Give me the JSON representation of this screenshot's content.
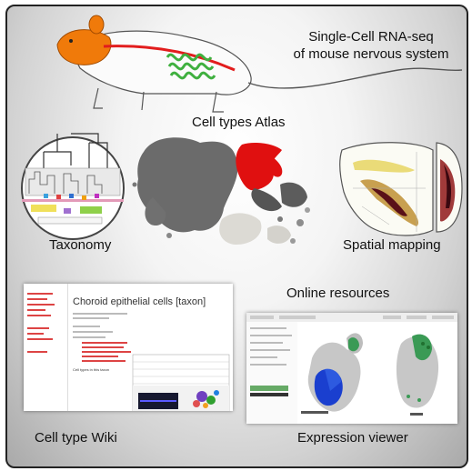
{
  "header": {
    "line1": "Single-Cell RNA-seq",
    "line2": "of mouse nervous system"
  },
  "labels": {
    "atlas": "Cell types Atlas",
    "taxonomy": "Taxonomy",
    "spatial": "Spatial mapping",
    "online": "Online resources",
    "wiki": "Cell type Wiki",
    "viewer": "Expression viewer"
  },
  "wiki": {
    "title": "Choroid epithelial cells [taxon]",
    "cell_types_heading": "Cell types in this taxon"
  },
  "colors": {
    "mouse_body": "#f07a0a",
    "nerve": "#e21d1d",
    "gut": "#3fb03f",
    "atlas_highlight": "#e01010",
    "atlas_base": "#6b6b6b"
  }
}
